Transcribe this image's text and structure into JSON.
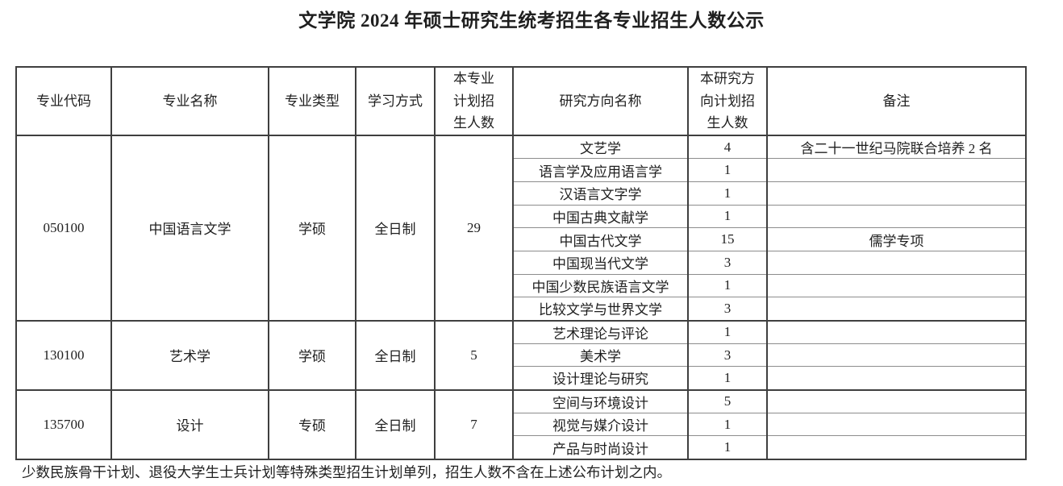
{
  "title": "文学院 2024 年硕士研究生统考招生各专业招生人数公示",
  "table": {
    "headers": [
      "专业代码",
      "专业名称",
      "专业类型",
      "学习方式",
      "本专业计划招生人数",
      "研究方向名称",
      "本研究方向计划招生人数",
      "备注"
    ],
    "majors": [
      {
        "code": "050100",
        "name": "中国语言文学",
        "type": "学硕",
        "mode": "全日制",
        "plan": "29",
        "directions": [
          {
            "name": "文艺学",
            "count": "4",
            "remark": "含二十一世纪马院联合培养 2 名"
          },
          {
            "name": "语言学及应用语言学",
            "count": "1",
            "remark": ""
          },
          {
            "name": "汉语言文字学",
            "count": "1",
            "remark": ""
          },
          {
            "name": "中国古典文献学",
            "count": "1",
            "remark": ""
          },
          {
            "name": "中国古代文学",
            "count": "15",
            "remark": "儒学专项"
          },
          {
            "name": "中国现当代文学",
            "count": "3",
            "remark": ""
          },
          {
            "name": "中国少数民族语言文学",
            "count": "1",
            "remark": ""
          },
          {
            "name": "比较文学与世界文学",
            "count": "3",
            "remark": ""
          }
        ]
      },
      {
        "code": "130100",
        "name": "艺术学",
        "type": "学硕",
        "mode": "全日制",
        "plan": "5",
        "directions": [
          {
            "name": "艺术理论与评论",
            "count": "1",
            "remark": ""
          },
          {
            "name": "美术学",
            "count": "3",
            "remark": ""
          },
          {
            "name": "设计理论与研究",
            "count": "1",
            "remark": ""
          }
        ]
      },
      {
        "code": "135700",
        "name": "设计",
        "type": "专硕",
        "mode": "全日制",
        "plan": "7",
        "directions": [
          {
            "name": "空间与环境设计",
            "count": "5",
            "remark": ""
          },
          {
            "name": "视觉与媒介设计",
            "count": "1",
            "remark": ""
          },
          {
            "name": "产品与时尚设计",
            "count": "1",
            "remark": ""
          }
        ]
      }
    ]
  },
  "footnote": "少数民族骨干计划、退役大学生士兵计划等特殊类型招生计划单列，招生人数不含在上述公布计划之内。"
}
